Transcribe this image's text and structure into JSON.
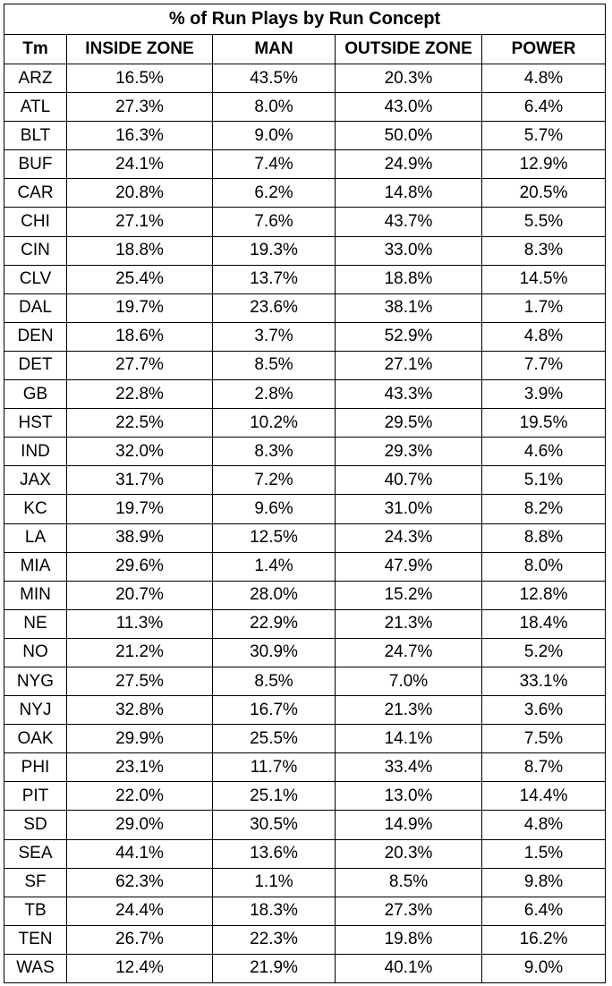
{
  "chart_data": {
    "type": "table",
    "title": "% of Run Plays by Run Concept",
    "columns": [
      "Tm",
      "INSIDE ZONE",
      "MAN",
      "OUTSIDE ZONE",
      "POWER"
    ],
    "rows": [
      [
        "ARZ",
        "16.5%",
        "43.5%",
        "20.3%",
        "4.8%"
      ],
      [
        "ATL",
        "27.3%",
        "8.0%",
        "43.0%",
        "6.4%"
      ],
      [
        "BLT",
        "16.3%",
        "9.0%",
        "50.0%",
        "5.7%"
      ],
      [
        "BUF",
        "24.1%",
        "7.4%",
        "24.9%",
        "12.9%"
      ],
      [
        "CAR",
        "20.8%",
        "6.2%",
        "14.8%",
        "20.5%"
      ],
      [
        "CHI",
        "27.1%",
        "7.6%",
        "43.7%",
        "5.5%"
      ],
      [
        "CIN",
        "18.8%",
        "19.3%",
        "33.0%",
        "8.3%"
      ],
      [
        "CLV",
        "25.4%",
        "13.7%",
        "18.8%",
        "14.5%"
      ],
      [
        "DAL",
        "19.7%",
        "23.6%",
        "38.1%",
        "1.7%"
      ],
      [
        "DEN",
        "18.6%",
        "3.7%",
        "52.9%",
        "4.8%"
      ],
      [
        "DET",
        "27.7%",
        "8.5%",
        "27.1%",
        "7.7%"
      ],
      [
        "GB",
        "22.8%",
        "2.8%",
        "43.3%",
        "3.9%"
      ],
      [
        "HST",
        "22.5%",
        "10.2%",
        "29.5%",
        "19.5%"
      ],
      [
        "IND",
        "32.0%",
        "8.3%",
        "29.3%",
        "4.6%"
      ],
      [
        "JAX",
        "31.7%",
        "7.2%",
        "40.7%",
        "5.1%"
      ],
      [
        "KC",
        "19.7%",
        "9.6%",
        "31.0%",
        "8.2%"
      ],
      [
        "LA",
        "38.9%",
        "12.5%",
        "24.3%",
        "8.8%"
      ],
      [
        "MIA",
        "29.6%",
        "1.4%",
        "47.9%",
        "8.0%"
      ],
      [
        "MIN",
        "20.7%",
        "28.0%",
        "15.2%",
        "12.8%"
      ],
      [
        "NE",
        "11.3%",
        "22.9%",
        "21.3%",
        "18.4%"
      ],
      [
        "NO",
        "21.2%",
        "30.9%",
        "24.7%",
        "5.2%"
      ],
      [
        "NYG",
        "27.5%",
        "8.5%",
        "7.0%",
        "33.1%"
      ],
      [
        "NYJ",
        "32.8%",
        "16.7%",
        "21.3%",
        "3.6%"
      ],
      [
        "OAK",
        "29.9%",
        "25.5%",
        "14.1%",
        "7.5%"
      ],
      [
        "PHI",
        "23.1%",
        "11.7%",
        "33.4%",
        "8.7%"
      ],
      [
        "PIT",
        "22.0%",
        "25.1%",
        "13.0%",
        "14.4%"
      ],
      [
        "SD",
        "29.0%",
        "30.5%",
        "14.9%",
        "4.8%"
      ],
      [
        "SEA",
        "44.1%",
        "13.6%",
        "20.3%",
        "1.5%"
      ],
      [
        "SF",
        "62.3%",
        "1.1%",
        "8.5%",
        "9.8%"
      ],
      [
        "TB",
        "24.4%",
        "18.3%",
        "27.3%",
        "6.4%"
      ],
      [
        "TEN",
        "26.7%",
        "22.3%",
        "19.8%",
        "16.2%"
      ],
      [
        "WAS",
        "12.4%",
        "21.9%",
        "40.1%",
        "9.0%"
      ]
    ]
  }
}
